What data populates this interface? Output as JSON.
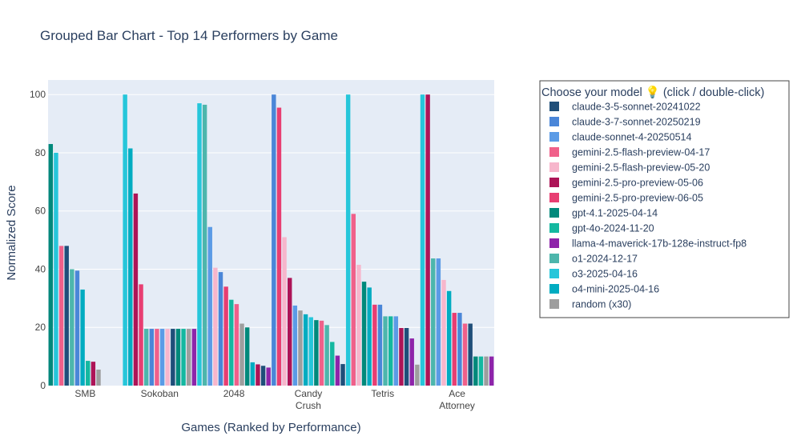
{
  "chart_data": {
    "type": "bar",
    "title": "Grouped Bar Chart - Top 14 Performers by Game",
    "xlabel": "Games (Ranked by Performance)",
    "ylabel": "Normalized Score",
    "ylim": [
      0,
      105
    ],
    "yticks": [
      0,
      20,
      40,
      60,
      80,
      100
    ],
    "grid": true,
    "legend_title": "Choose your model 💡 (click / double-click)",
    "legend_position": "right",
    "games": [
      {
        "label_lines": [
          "SMB"
        ],
        "bars": [
          {
            "model": "gpt-4.1-2025-04-14",
            "value": 83
          },
          {
            "model": "o3-2025-04-16",
            "value": 80
          },
          {
            "model": "gemini-2.5-flash-preview-04-17",
            "value": 48
          },
          {
            "model": "claude-3-5-sonnet-20241022",
            "value": 48
          },
          {
            "model": "o1-2024-12-17",
            "value": 40
          },
          {
            "model": "claude-3-7-sonnet-20250219",
            "value": 39.5
          },
          {
            "model": "o4-mini-2025-04-16",
            "value": 33
          },
          {
            "model": "gpt-4o-2024-11-20",
            "value": 8.5
          },
          {
            "model": "gemini-2.5-pro-preview-05-06",
            "value": 8.2
          },
          {
            "model": "random (x30)",
            "value": 5.5
          }
        ]
      },
      {
        "label_lines": [
          "Sokoban"
        ],
        "bars": [
          {
            "model": "o3-2025-04-16",
            "value": 100
          },
          {
            "model": "o4-mini-2025-04-16",
            "value": 81.5
          },
          {
            "model": "gemini-2.5-pro-preview-05-06",
            "value": 66
          },
          {
            "model": "gemini-2.5-pro-preview-06-05",
            "value": 34.8
          },
          {
            "model": "o1-2024-12-17",
            "value": 19.5
          },
          {
            "model": "claude-3-7-sonnet-20250219",
            "value": 19.5
          },
          {
            "model": "gemini-2.5-flash-preview-04-17",
            "value": 19.5
          },
          {
            "model": "claude-sonnet-4-20250514",
            "value": 19.5
          },
          {
            "model": "gemini-2.5-flash-preview-05-20",
            "value": 19.5
          },
          {
            "model": "claude-3-5-sonnet-20241022",
            "value": 19.5
          },
          {
            "model": "gpt-4.1-2025-04-14",
            "value": 19.5
          },
          {
            "model": "gpt-4o-2024-11-20",
            "value": 19.5
          },
          {
            "model": "random (x30)",
            "value": 19.5
          },
          {
            "model": "llama-4-maverick-17b-128e-instruct-fp8",
            "value": 19.5
          }
        ]
      },
      {
        "label_lines": [
          "2048"
        ],
        "bars": [
          {
            "model": "o3-2025-04-16",
            "value": 97
          },
          {
            "model": "o1-2024-12-17",
            "value": 96.5
          },
          {
            "model": "claude-sonnet-4-20250514",
            "value": 54.5
          },
          {
            "model": "gemini-2.5-flash-preview-05-20",
            "value": 40.5
          },
          {
            "model": "claude-3-7-sonnet-20250219",
            "value": 39
          },
          {
            "model": "gemini-2.5-pro-preview-06-05",
            "value": 34
          },
          {
            "model": "gpt-4o-2024-11-20",
            "value": 29.5
          },
          {
            "model": "gemini-2.5-flash-preview-04-17",
            "value": 28
          },
          {
            "model": "random (x30)",
            "value": 21.3
          },
          {
            "model": "gpt-4.1-2025-04-14",
            "value": 20
          },
          {
            "model": "o4-mini-2025-04-16",
            "value": 8
          },
          {
            "model": "gemini-2.5-pro-preview-05-06",
            "value": 7.3
          },
          {
            "model": "claude-3-5-sonnet-20241022",
            "value": 6.8
          },
          {
            "model": "llama-4-maverick-17b-128e-instruct-fp8",
            "value": 6.2
          }
        ]
      },
      {
        "label_lines": [
          "Candy",
          "Crush"
        ],
        "bars": [
          {
            "model": "claude-3-7-sonnet-20250219",
            "value": 100
          },
          {
            "model": "gemini-2.5-pro-preview-06-05",
            "value": 95.5
          },
          {
            "model": "gemini-2.5-flash-preview-05-20",
            "value": 51
          },
          {
            "model": "gemini-2.5-pro-preview-05-06",
            "value": 37
          },
          {
            "model": "claude-sonnet-4-20250514",
            "value": 27.5
          },
          {
            "model": "random (x30)",
            "value": 25.8
          },
          {
            "model": "o4-mini-2025-04-16",
            "value": 24.5
          },
          {
            "model": "o3-2025-04-16",
            "value": 23.5
          },
          {
            "model": "gpt-4.1-2025-04-14",
            "value": 22.5
          },
          {
            "model": "gemini-2.5-flash-preview-04-17",
            "value": 22.3
          },
          {
            "model": "o1-2024-12-17",
            "value": 20.8
          },
          {
            "model": "gpt-4o-2024-11-20",
            "value": 15
          },
          {
            "model": "llama-4-maverick-17b-128e-instruct-fp8",
            "value": 10.3
          },
          {
            "model": "claude-3-5-sonnet-20241022",
            "value": 7.4
          }
        ]
      },
      {
        "label_lines": [
          "Tetris"
        ],
        "bars": [
          {
            "model": "o3-2025-04-16",
            "value": 100
          },
          {
            "model": "gemini-2.5-flash-preview-04-17",
            "value": 59
          },
          {
            "model": "gemini-2.5-flash-preview-05-20",
            "value": 41.5
          },
          {
            "model": "gpt-4.1-2025-04-14",
            "value": 35.7
          },
          {
            "model": "o4-mini-2025-04-16",
            "value": 33.7
          },
          {
            "model": "gemini-2.5-pro-preview-06-05",
            "value": 27.8
          },
          {
            "model": "claude-3-7-sonnet-20250219",
            "value": 27.8
          },
          {
            "model": "o1-2024-12-17",
            "value": 23.8
          },
          {
            "model": "gpt-4o-2024-11-20",
            "value": 23.8
          },
          {
            "model": "claude-sonnet-4-20250514",
            "value": 23.8
          },
          {
            "model": "gemini-2.5-pro-preview-05-06",
            "value": 19.8
          },
          {
            "model": "claude-3-5-sonnet-20241022",
            "value": 19.8
          },
          {
            "model": "llama-4-maverick-17b-128e-instruct-fp8",
            "value": 16.2
          },
          {
            "model": "random (x30)",
            "value": 7.2
          }
        ]
      },
      {
        "label_lines": [
          "Ace",
          "Attorney"
        ],
        "bars": [
          {
            "model": "o3-2025-04-16",
            "value": 100
          },
          {
            "model": "gemini-2.5-pro-preview-05-06",
            "value": 100
          },
          {
            "model": "o1-2024-12-17",
            "value": 43.7
          },
          {
            "model": "claude-sonnet-4-20250514",
            "value": 43.7
          },
          {
            "model": "gemini-2.5-flash-preview-05-20",
            "value": 36.3
          },
          {
            "model": "o4-mini-2025-04-16",
            "value": 32.5
          },
          {
            "model": "gemini-2.5-pro-preview-06-05",
            "value": 25
          },
          {
            "model": "claude-3-7-sonnet-20250219",
            "value": 25
          },
          {
            "model": "gemini-2.5-flash-preview-04-17",
            "value": 21.3
          },
          {
            "model": "claude-3-5-sonnet-20241022",
            "value": 21.3
          },
          {
            "model": "gpt-4.1-2025-04-14",
            "value": 10
          },
          {
            "model": "gpt-4o-2024-11-20",
            "value": 10
          },
          {
            "model": "random (x30)",
            "value": 10
          },
          {
            "model": "llama-4-maverick-17b-128e-instruct-fp8",
            "value": 10
          }
        ]
      }
    ],
    "models": [
      {
        "name": "claude-3-5-sonnet-20241022",
        "color": "#1f4e79"
      },
      {
        "name": "claude-3-7-sonnet-20250219",
        "color": "#4a86d8"
      },
      {
        "name": "claude-sonnet-4-20250514",
        "color": "#5b9be6"
      },
      {
        "name": "gemini-2.5-flash-preview-04-17",
        "color": "#f0608a"
      },
      {
        "name": "gemini-2.5-flash-preview-05-20",
        "color": "#f7b6cc"
      },
      {
        "name": "gemini-2.5-pro-preview-05-06",
        "color": "#ad1457"
      },
      {
        "name": "gemini-2.5-pro-preview-06-05",
        "color": "#e83e72"
      },
      {
        "name": "gpt-4.1-2025-04-14",
        "color": "#00897b"
      },
      {
        "name": "gpt-4o-2024-11-20",
        "color": "#14b8a0"
      },
      {
        "name": "llama-4-maverick-17b-128e-instruct-fp8",
        "color": "#8e24aa"
      },
      {
        "name": "o1-2024-12-17",
        "color": "#4db6ac"
      },
      {
        "name": "o3-2025-04-16",
        "color": "#26c6da"
      },
      {
        "name": "o4-mini-2025-04-16",
        "color": "#00acc1"
      },
      {
        "name": "random (x30)",
        "color": "#9e9e9e"
      }
    ]
  }
}
